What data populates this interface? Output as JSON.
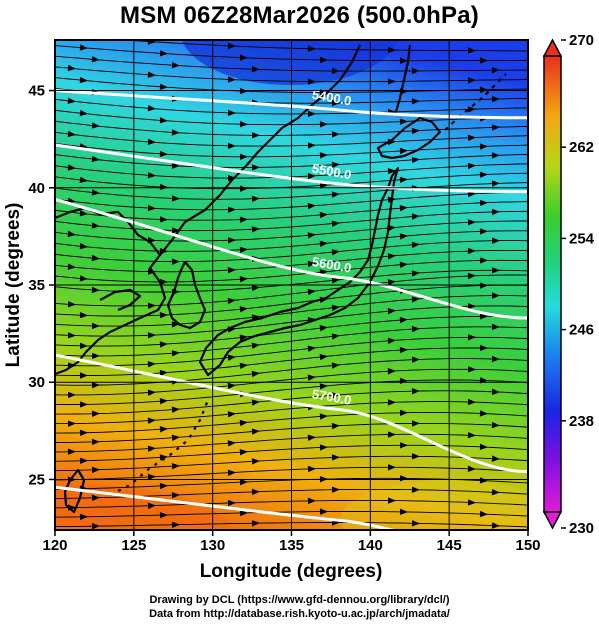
{
  "title": "MSM 06Z28Mar2026 (500.0hPa)",
  "x_axis": {
    "label": "Longitude (degrees)",
    "range": [
      120,
      150
    ],
    "ticks": [
      "120",
      "125",
      "130",
      "135",
      "140",
      "145",
      "150"
    ]
  },
  "y_axis": {
    "label": "Latitude  (degrees)",
    "range": [
      22.4,
      47.6
    ],
    "ticks": [
      "25",
      "30",
      "35",
      "40",
      "45"
    ]
  },
  "colorbar": {
    "range": [
      230,
      270
    ],
    "ticks": [
      "230",
      "238",
      "246",
      "254",
      "262",
      "270"
    ]
  },
  "contours": [
    {
      "label": "5400.0",
      "lat_west": 45.0,
      "lat_mid": 44.0,
      "lat_east": 43.6
    },
    {
      "label": "5500.0",
      "lat_west": 42.2,
      "lat_mid": 40.2,
      "lat_east": 39.8
    },
    {
      "label": "5600.0",
      "lat_west": 39.4,
      "lat_mid": 35.4,
      "lat_east": 33.3
    },
    {
      "label": "5700.0",
      "lat_west": 31.4,
      "lat_mid": 28.6,
      "lat_east": 25.4
    },
    {
      "label": "",
      "lat_west": 24.6,
      "lat_mid": 22.9,
      "lat_east": 21.0
    }
  ],
  "wind": "westerly streamlines",
  "credits": [
    "Drawing by DCL (https://www.gfd-dennou.org/library/dcl/)",
    "Data from http://database.rish.kyoto-u.ac.jp/arch/jmadata/"
  ]
}
